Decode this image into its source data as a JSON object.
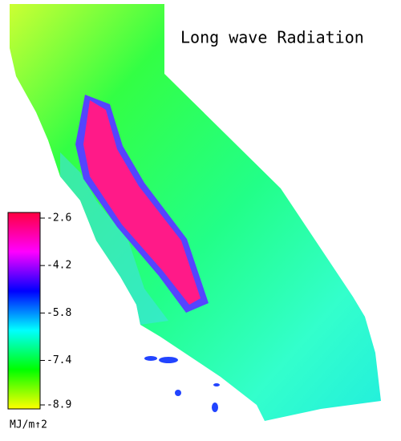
{
  "title": "Long wave Radiation",
  "colorbar": {
    "range": [
      -8.9,
      -2.6
    ],
    "ticks": [
      -2.6,
      -4.2,
      -5.8,
      -7.4,
      -8.9
    ],
    "unit": "MJ/m↑2",
    "colors": [
      "#ffff00",
      "#00ff00",
      "#00ffff",
      "#0000ff",
      "#ff00ff",
      "#ff0040"
    ]
  }
}
